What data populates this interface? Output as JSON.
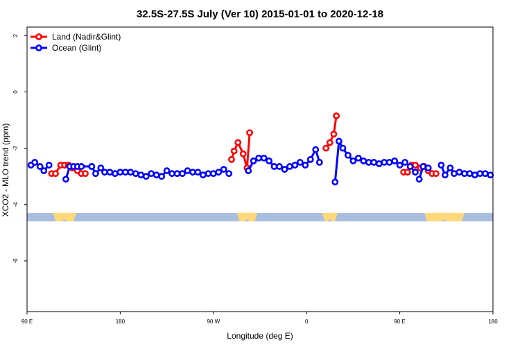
{
  "chart_data": {
    "type": "line",
    "title": "32.5S-27.5S July (Ver 10)   2015-01-01 to 2020-12-18",
    "xlabel": "Longitude (deg E)",
    "ylabel": "XCO2 - MLO trend (ppm)",
    "xlim": [
      90,
      450
    ],
    "ylim": [
      -7.8,
      2.3
    ],
    "x_ticks": [
      {
        "value": 90,
        "label": "90 E"
      },
      {
        "value": 162,
        "label": "180"
      },
      {
        "value": 234,
        "label": "90 W"
      },
      {
        "value": 306,
        "label": "0"
      },
      {
        "value": 378,
        "label": "90 E"
      },
      {
        "value": 450,
        "label": "180"
      }
    ],
    "y_ticks": [
      {
        "value": 2,
        "label": "2"
      },
      {
        "value": 0,
        "label": "0"
      },
      {
        "value": -2,
        "label": "-2"
      },
      {
        "value": -4,
        "label": "-4"
      },
      {
        "value": -6,
        "label": "-6"
      }
    ],
    "legend_position": "top-left",
    "series": [
      {
        "name": "Land (Nadir&Glint)",
        "color": "#ff0000",
        "segments": [
          [
            [
              109,
              -2.9
            ],
            [
              112,
              -2.9
            ],
            [
              116,
              -2.6
            ],
            [
              119,
              -2.6
            ],
            [
              122,
              -2.6
            ]
          ],
          [
            [
              122,
              -2.6
            ],
            [
              125,
              -2.7
            ],
            [
              129,
              -2.8
            ],
            [
              132,
              -2.9
            ],
            [
              135,
              -2.9
            ]
          ],
          [
            [
              248,
              -2.4
            ],
            [
              250,
              -2.1
            ],
            [
              253,
              -1.8
            ],
            [
              257,
              -2.2
            ],
            [
              260,
              -2.7
            ],
            [
              262,
              -1.45
            ]
          ],
          [
            [
              321,
              -2.0
            ],
            [
              324,
              -1.8
            ],
            [
              327,
              -1.5
            ],
            [
              329,
              -0.85
            ]
          ],
          [
            [
              381,
              -2.85
            ],
            [
              384,
              -2.85
            ],
            [
              387,
              -2.6
            ],
            [
              390,
              -2.6
            ]
          ],
          [
            [
              390,
              -2.6
            ],
            [
              394,
              -2.7
            ],
            [
              397,
              -2.65
            ],
            [
              400,
              -2.8
            ],
            [
              403,
              -2.9
            ],
            [
              406,
              -2.9
            ]
          ]
        ]
      },
      {
        "name": "Ocean (Glint)",
        "color": "#0000ff",
        "segments": [
          [
            [
              93,
              -2.6
            ],
            [
              96,
              -2.5
            ],
            [
              100,
              -2.65
            ],
            [
              103,
              -2.8
            ],
            [
              107,
              -2.6
            ]
          ],
          [
            [
              120,
              -3.1
            ],
            [
              123,
              -2.65
            ],
            [
              126,
              -2.65
            ],
            [
              129,
              -2.65
            ],
            [
              132,
              -2.65
            ],
            [
              140,
              -2.65
            ]
          ],
          [
            [
              140,
              -2.65
            ],
            [
              143,
              -2.9
            ],
            [
              147,
              -2.7
            ],
            [
              150,
              -2.85
            ],
            [
              154,
              -2.85
            ],
            [
              158,
              -2.9
            ],
            [
              162,
              -2.85
            ],
            [
              166,
              -2.85
            ],
            [
              170,
              -2.85
            ],
            [
              174,
              -2.9
            ],
            [
              178,
              -2.95
            ],
            [
              182,
              -3.0
            ],
            [
              186,
              -2.9
            ],
            [
              190,
              -2.95
            ],
            [
              194,
              -3.0
            ],
            [
              198,
              -2.8
            ],
            [
              202,
              -2.9
            ],
            [
              206,
              -2.9
            ],
            [
              210,
              -2.9
            ],
            [
              214,
              -2.8
            ],
            [
              218,
              -2.85
            ],
            [
              222,
              -2.85
            ],
            [
              226,
              -2.95
            ],
            [
              230,
              -2.9
            ],
            [
              234,
              -2.9
            ],
            [
              238,
              -2.85
            ],
            [
              242,
              -2.75
            ],
            [
              246,
              -2.9
            ]
          ],
          [
            [
              261,
              -2.8
            ],
            [
              265,
              -2.45
            ],
            [
              269,
              -2.35
            ],
            [
              273,
              -2.35
            ],
            [
              277,
              -2.45
            ],
            [
              281,
              -2.65
            ],
            [
              285,
              -2.65
            ],
            [
              289,
              -2.75
            ],
            [
              293,
              -2.65
            ],
            [
              297,
              -2.6
            ],
            [
              301,
              -2.5
            ],
            [
              305,
              -2.6
            ],
            [
              309,
              -2.4
            ],
            [
              313,
              -2.05
            ],
            [
              316,
              -2.5
            ]
          ],
          [
            [
              328,
              -3.2
            ],
            [
              331,
              -1.75
            ],
            [
              334,
              -2.0
            ],
            [
              338,
              -2.25
            ],
            [
              342,
              -2.45
            ],
            [
              346,
              -2.35
            ],
            [
              350,
              -2.45
            ],
            [
              354,
              -2.5
            ],
            [
              358,
              -2.5
            ],
            [
              362,
              -2.55
            ],
            [
              366,
              -2.5
            ],
            [
              370,
              -2.5
            ],
            [
              374,
              -2.45
            ],
            [
              378,
              -2.6
            ],
            [
              382,
              -2.5
            ],
            [
              386,
              -2.65
            ],
            [
              390,
              -2.85
            ]
          ],
          [
            [
              393,
              -3.1
            ],
            [
              396,
              -2.65
            ],
            [
              400,
              -2.7
            ]
          ],
          [
            [
              410,
              -2.6
            ],
            [
              413,
              -2.95
            ],
            [
              417,
              -2.7
            ],
            [
              420,
              -2.9
            ],
            [
              424,
              -2.85
            ],
            [
              428,
              -2.9
            ],
            [
              432,
              -2.9
            ],
            [
              436,
              -2.95
            ],
            [
              440,
              -2.9
            ],
            [
              444,
              -2.9
            ],
            [
              448,
              -2.95
            ]
          ]
        ]
      }
    ],
    "land_mask": {
      "y": -4.45,
      "ocean_color": "#a8bedf",
      "land_color": "#fed97b",
      "land_ranges": [
        [
          110,
          128
        ],
        [
          252,
          268
        ],
        [
          318,
          330
        ],
        [
          397,
          428
        ]
      ]
    }
  }
}
